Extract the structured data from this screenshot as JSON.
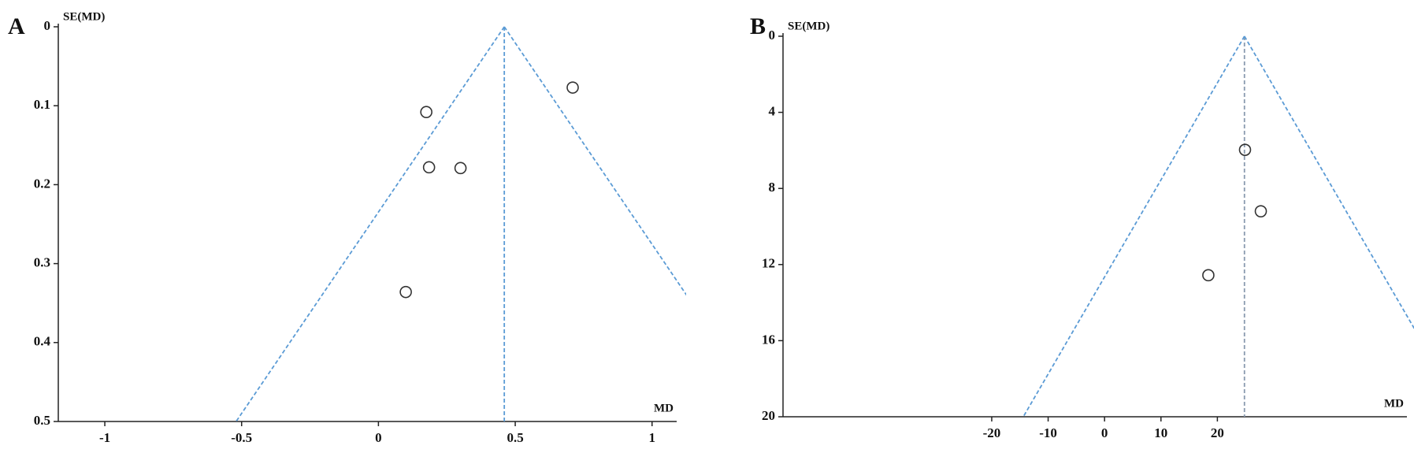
{
  "chart_data": [
    {
      "type": "scatter",
      "panel": "A",
      "y_label": "SE(MD)",
      "x_label": "MD",
      "x": [
        0.175,
        0.185,
        0.3,
        0.1,
        0.71
      ],
      "values": [
        0.108,
        0.178,
        0.179,
        0.336,
        0.077
      ],
      "pooled_estimate": 0.46,
      "y_inverted": true,
      "xlim": [
        -1.17,
        1.09
      ],
      "ylim": [
        0,
        0.5
      ],
      "xticks": [
        -1,
        -0.5,
        0,
        0.5,
        1
      ],
      "yticks": [
        0,
        0.1,
        0.2,
        0.3,
        0.4,
        0.5
      ],
      "color": "#333333",
      "line_color": "#5b9bd5",
      "center_line_color": "#5b9bd5"
    },
    {
      "type": "scatter",
      "panel": "B",
      "y_label": "SE(MD)",
      "x_label": "MD",
      "x": [
        24.9,
        27.7,
        18.4
      ],
      "values": [
        5.97,
        9.2,
        12.56
      ],
      "pooled_estimate": 24.8,
      "y_inverted": true,
      "xlim": [
        -57,
        53.6
      ],
      "ylim": [
        0,
        20
      ],
      "xticks": [
        -20,
        -10,
        0,
        10,
        20
      ],
      "yticks": [
        0,
        4,
        8,
        12,
        16,
        20
      ],
      "color": "#333333",
      "line_color": "#5b9bd5",
      "center_line_color": "#8a9bb0"
    }
  ]
}
